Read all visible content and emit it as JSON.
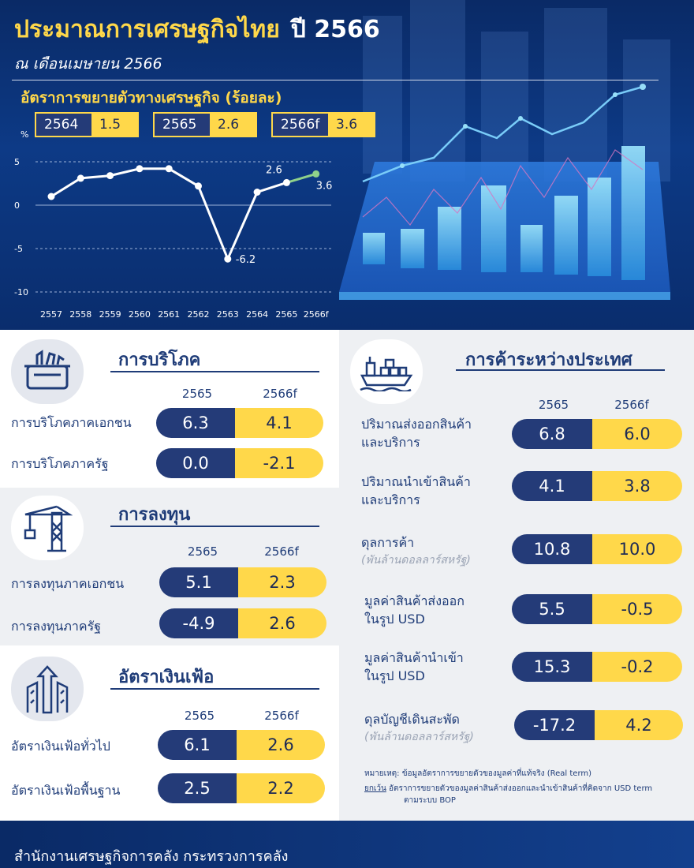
{
  "header": {
    "title": "ประมาณการเศรษฐกิจไทย",
    "title_year": "ปี 2566",
    "subtitle": "ณ เดือนเมษายน 2566",
    "growth_title": "อัตราการขยายตัวทางเศรษฐกิจ (ร้อยละ)",
    "pills": [
      {
        "year": "2564",
        "value": "1.5"
      },
      {
        "year": "2565",
        "value": "2.6"
      },
      {
        "year": "2566f",
        "value": "3.6"
      }
    ]
  },
  "chart_data": {
    "type": "line",
    "ylabel": "%",
    "ylim": [
      -10,
      5
    ],
    "yticks": [
      "5",
      "0",
      "-5",
      "-10"
    ],
    "grid": true,
    "categories": [
      "2557",
      "2558",
      "2559",
      "2560",
      "2561",
      "2562",
      "2563",
      "2564",
      "2565",
      "2566f"
    ],
    "values": [
      1.0,
      3.1,
      3.4,
      4.2,
      4.2,
      2.2,
      -6.2,
      1.5,
      2.6,
      3.6
    ],
    "data_labels": [
      {
        "index": 6,
        "text": "-6.2"
      },
      {
        "index": 8,
        "text": "2.6"
      },
      {
        "index": 9,
        "text": "3.6"
      }
    ],
    "colors": {
      "line": "#ffffff",
      "forecast": "#8fd18a"
    }
  },
  "consumption": {
    "title": "การบริโภค",
    "col_2565": "2565",
    "col_2566": "2566f",
    "rows": [
      {
        "label": "การบริโภคภาคเอกชน",
        "v2565": "6.3",
        "v2566": "4.1"
      },
      {
        "label": "การบริโภคภาครัฐ",
        "v2565": "0.0",
        "v2566": "-2.1"
      }
    ]
  },
  "investment": {
    "title": "การลงทุน",
    "col_2565": "2565",
    "col_2566": "2566f",
    "rows": [
      {
        "label": "การลงทุนภาคเอกชน",
        "v2565": "5.1",
        "v2566": "2.3"
      },
      {
        "label": "การลงทุนภาครัฐ",
        "v2565": "-4.9",
        "v2566": "2.6"
      }
    ]
  },
  "inflation": {
    "title": "อัตราเงินเฟ้อ",
    "col_2565": "2565",
    "col_2566": "2566f",
    "rows": [
      {
        "label": "อัตราเงินเฟ้อทั่วไป",
        "v2565": "6.1",
        "v2566": "2.6"
      },
      {
        "label": "อัตราเงินเฟ้อพื้นฐาน",
        "v2565": "2.5",
        "v2566": "2.2"
      }
    ]
  },
  "trade": {
    "title": "การค้าระหว่างประเทศ",
    "col_2565": "2565",
    "col_2566": "2566f",
    "rows": [
      {
        "line1": "ปริมาณส่งออกสินค้า",
        "line2": "และบริการ",
        "v2565": "6.8",
        "v2566": "6.0"
      },
      {
        "line1": "ปริมาณนำเข้าสินค้า",
        "line2": "และบริการ",
        "v2565": "4.1",
        "v2566": "3.8"
      },
      {
        "line1": "ดุลการค้า",
        "sub": "(พันล้านดอลลาร์สหรัฐ)",
        "v2565": "10.8",
        "v2566": "10.0"
      },
      {
        "line1": "มูลค่าสินค้าส่งออก",
        "line2": "ในรูป USD",
        "v2565": "5.5",
        "v2566": "-0.5"
      },
      {
        "line1": "มูลค่าสินค้านำเข้า",
        "line2": "ในรูป USD",
        "v2565": "15.3",
        "v2566": "-0.2"
      },
      {
        "line1": "ดุลบัญชีเดินสะพัด",
        "sub": "(พันล้านดอลลาร์สหรัฐ)",
        "v2565": "-17.2",
        "v2566": "4.2"
      }
    ],
    "note1": "หมายเหตุ: ข้อมูลอัตราการขยายตัวของมูลค่าที่แท้จริง (Real term)",
    "note2_u": "ยกเว้น",
    "note2": " อัตราการขยายตัวของมูลค่าสินค้าส่งออกและนำเข้าสินค้าที่คิดจาก USD term",
    "note3": "ตามระบบ BOP"
  },
  "footer": {
    "text": "สำนักงานเศรษฐกิจการคลัง กระทรวงการคลัง"
  },
  "icons": [
    "basket-icon",
    "crane-icon",
    "inflation-arrow-icon",
    "cargo-ship-icon"
  ]
}
